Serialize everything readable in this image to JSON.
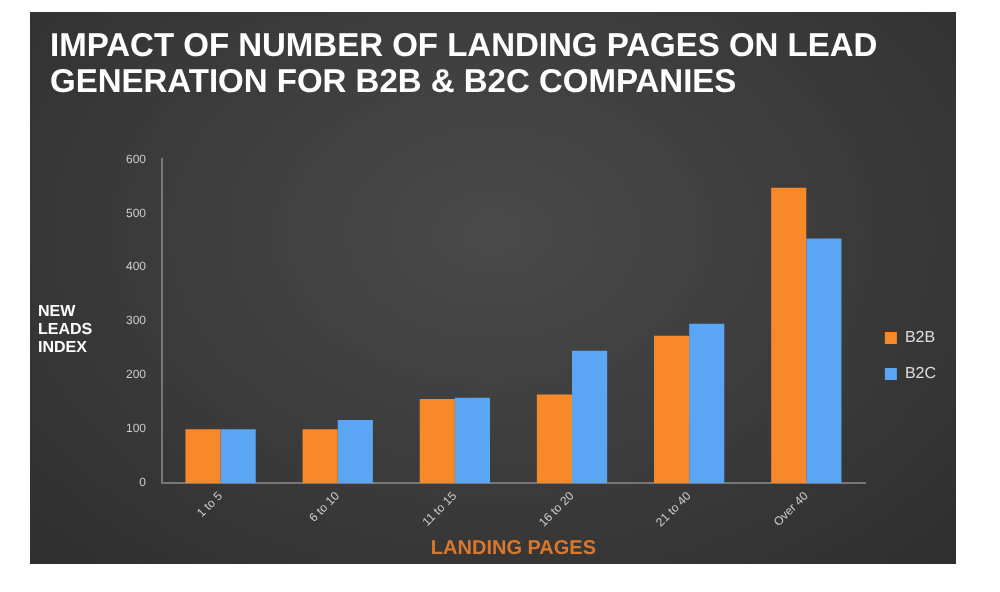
{
  "chart_data": {
    "type": "bar",
    "title": "IMPACT OF NUMBER OF LANDING PAGES ON LEAD GENERATION FOR B2B & B2C COMPANIES",
    "xlabel": "LANDING PAGES",
    "ylabel": "NEW LEADS INDEX",
    "categories": [
      "1 to 5",
      "6 to 10",
      "11 to 15",
      "16 to 20",
      "21 to 40",
      "Over 40"
    ],
    "series": [
      {
        "name": "B2B",
        "color": "#f7892a",
        "values": [
          100,
          100,
          156,
          164,
          273,
          547
        ]
      },
      {
        "name": "B2C",
        "color": "#5aa6f5",
        "values": [
          100,
          117,
          158,
          245,
          295,
          453
        ]
      }
    ],
    "ylim": [
      0,
      600
    ],
    "yticks": [
      0,
      100,
      200,
      300,
      400,
      500,
      600
    ],
    "grid": false,
    "legend": "right"
  }
}
